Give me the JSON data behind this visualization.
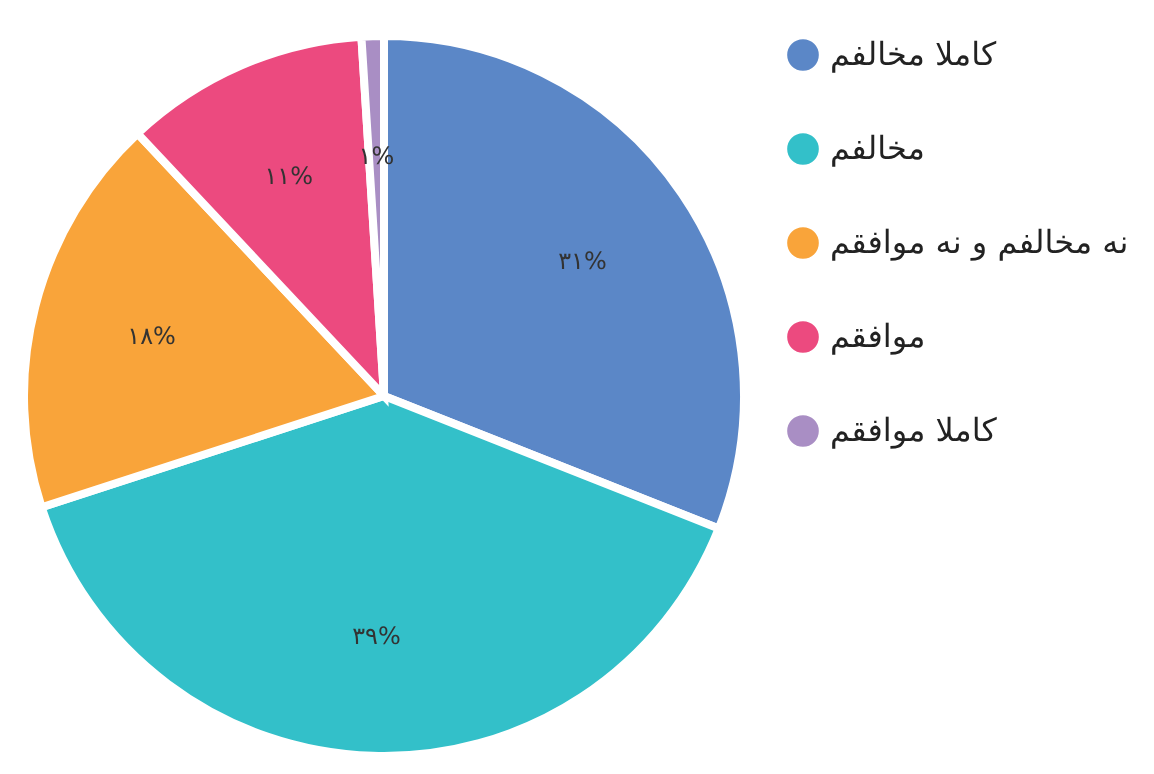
{
  "chart_data": {
    "type": "pie",
    "categories": [
      "کاملا مخالفم",
      "مخالفم",
      "نه مخالفم و نه موافقم",
      "موافقم",
      "کاملا موافقم"
    ],
    "values": [
      31,
      39,
      18,
      11,
      1
    ],
    "colors": [
      "#5b87c7",
      "#33c0c9",
      "#f9a43a",
      "#ec4a7f",
      "#a98ec4"
    ],
    "value_labels": [
      "۳۱%",
      "۳۹%",
      "۱۸%",
      "۱۱%",
      "۱%"
    ],
    "legend": "right"
  }
}
